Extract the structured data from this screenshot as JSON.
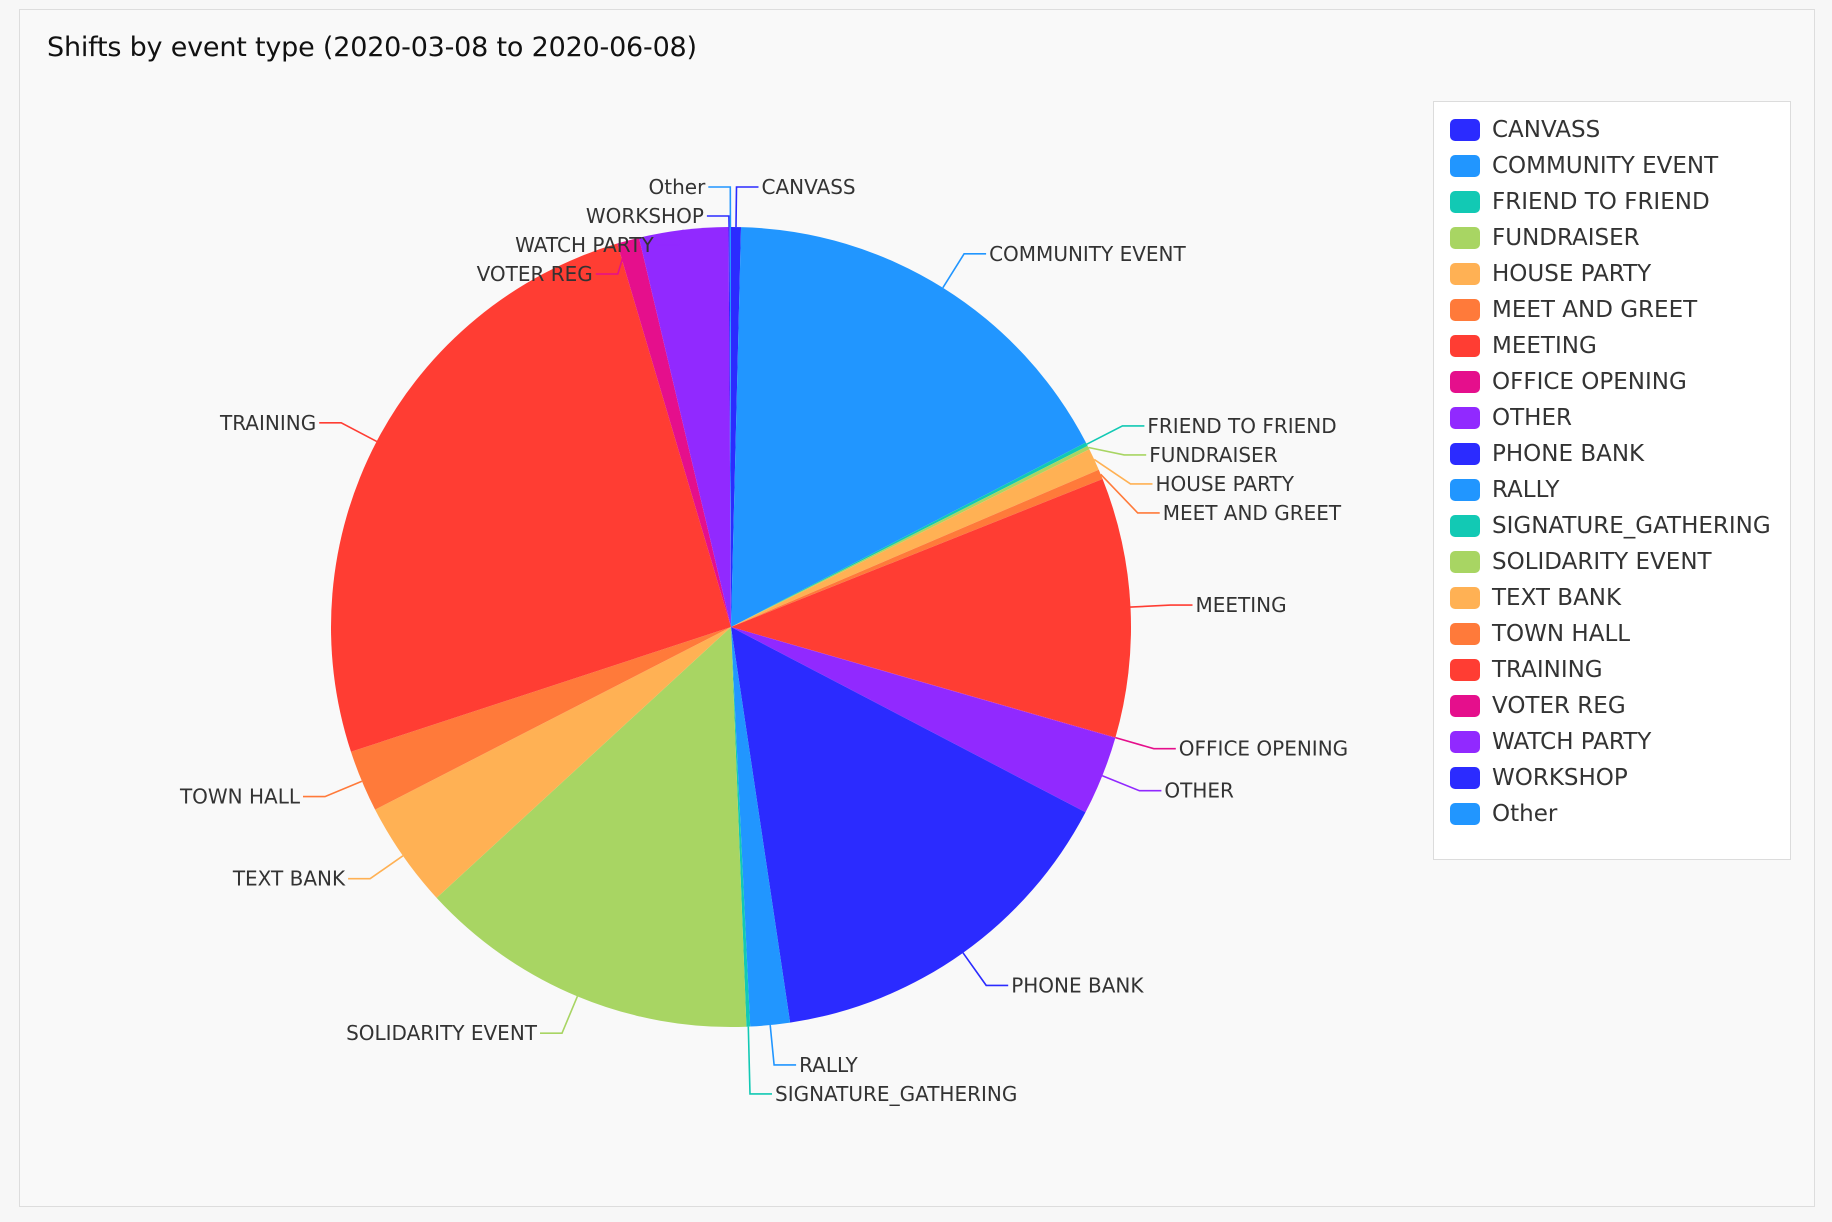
{
  "chart_data": {
    "type": "pie",
    "title": "Shifts by event type (2020-03-08 to 2020-06-08)",
    "legend_position": "right",
    "slices": [
      {
        "label": "CANVASS",
        "value": 0.4,
        "color": "#2b2bff"
      },
      {
        "label": "COMMUNITY EVENT",
        "value": 17.0,
        "color": "#2196ff"
      },
      {
        "label": "FRIEND TO FRIEND",
        "value": 0.15,
        "color": "#12c9b4"
      },
      {
        "label": "FUNDRAISER",
        "value": 0.15,
        "color": "#a8d563"
      },
      {
        "label": "HOUSE PARTY",
        "value": 0.9,
        "color": "#ffb154"
      },
      {
        "label": "MEET AND GREET",
        "value": 0.4,
        "color": "#ff7a3a"
      },
      {
        "label": "MEETING",
        "value": 10.5,
        "color": "#ff3d33"
      },
      {
        "label": "OFFICE OPENING",
        "value": 0.02,
        "color": "#e50f8c"
      },
      {
        "label": "OTHER",
        "value": 3.2,
        "color": "#9129ff"
      },
      {
        "label": "PHONE BANK",
        "value": 15.0,
        "color": "#2b2bff"
      },
      {
        "label": "RALLY",
        "value": 1.6,
        "color": "#2196ff"
      },
      {
        "label": "SIGNATURE_GATHERING",
        "value": 0.15,
        "color": "#12c9b4"
      },
      {
        "label": "SOLIDARITY EVENT",
        "value": 13.8,
        "color": "#a8d563"
      },
      {
        "label": "TEXT BANK",
        "value": 4.3,
        "color": "#ffb154"
      },
      {
        "label": "TOWN HALL",
        "value": 2.5,
        "color": "#ff7a3a"
      },
      {
        "label": "TRAINING",
        "value": 25.5,
        "color": "#ff3d33"
      },
      {
        "label": "VOTER REG",
        "value": 0.9,
        "color": "#e50f8c"
      },
      {
        "label": "WATCH PARTY",
        "value": 3.6,
        "color": "#9129ff"
      },
      {
        "label": "WORKSHOP",
        "value": 0.05,
        "color": "#2b2bff"
      },
      {
        "label": "Other",
        "value": 0.05,
        "color": "#2196ff"
      }
    ]
  }
}
